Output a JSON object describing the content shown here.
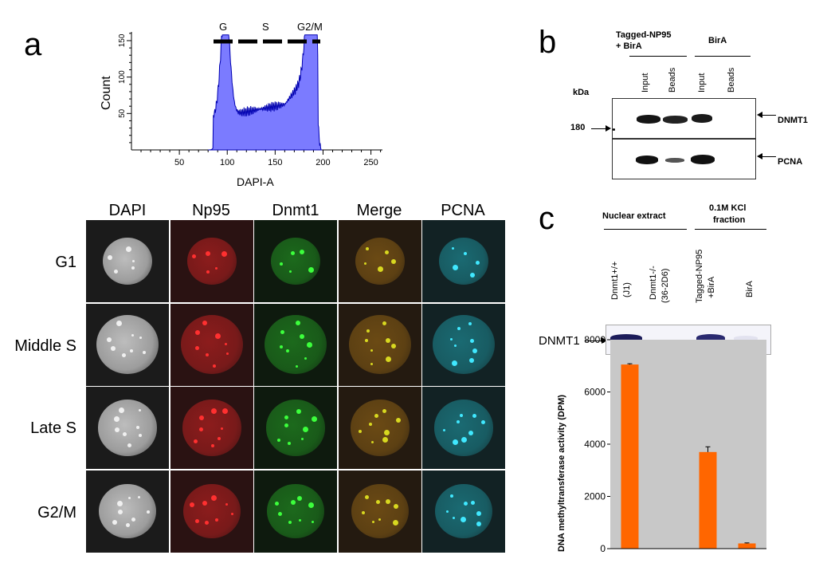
{
  "panel_letters": {
    "a": "a",
    "b": "b",
    "c": "c"
  },
  "histogram": {
    "ylabel": "Count",
    "xlabel": "DAPI-A",
    "x_ticks": [
      "50",
      "100",
      "150",
      "200",
      "250"
    ],
    "y_ticks": [
      "50",
      "100",
      "150"
    ],
    "phase_labels": [
      "G",
      "S",
      "G2/M"
    ],
    "fill_color": "#7b7bff",
    "line_color": "#0000b0"
  },
  "microscopy": {
    "columns": [
      "DAPI",
      "Np95",
      "Dnmt1",
      "Merge",
      "PCNA"
    ],
    "rows": [
      "G1",
      "Middle S",
      "Late S",
      "G2/M"
    ]
  },
  "blot_b": {
    "group1": "Tagged-NP95\n+ BirA",
    "group1_line1": "Tagged-NP95",
    "group1_line2": "+ BirA",
    "group2": "BirA",
    "lanes": [
      "Input",
      "Beads",
      "Input",
      "Beads"
    ],
    "kda_label": "kDa",
    "marker": "180",
    "band_labels": [
      "DNMT1",
      "PCNA"
    ]
  },
  "blot_c": {
    "group1": "Nuclear extract",
    "group2_line1": "0.1M KCl",
    "group2_line2": "fraction",
    "lanes": [
      {
        "line1": "Dnmt1+/+",
        "line2": "(J1)"
      },
      {
        "line1": "Dnmt1-/-",
        "line2": "(36-2D6)"
      },
      {
        "line1": "Tagged-NP95",
        "line2": "+BirA"
      },
      {
        "line1": "BirA",
        "line2": ""
      }
    ],
    "band_label": "DNMT1"
  },
  "chart_data": {
    "type": "bar",
    "categories": [
      "Dnmt1+/+ (J1)",
      "Dnmt1-/- (36-2D6)",
      "Tagged-NP95 +BirA",
      "BirA"
    ],
    "values": [
      7050,
      0,
      3700,
      200
    ],
    "errors": [
      30,
      0,
      200,
      20
    ],
    "ylabel": "DNA methyltransferase activity (DPM)",
    "y_ticks": [
      "0",
      "2000",
      "4000",
      "6000",
      "8000"
    ],
    "ylim": [
      0,
      8000
    ],
    "bar_color": "#ff6600",
    "background": "#c8c8c8"
  }
}
